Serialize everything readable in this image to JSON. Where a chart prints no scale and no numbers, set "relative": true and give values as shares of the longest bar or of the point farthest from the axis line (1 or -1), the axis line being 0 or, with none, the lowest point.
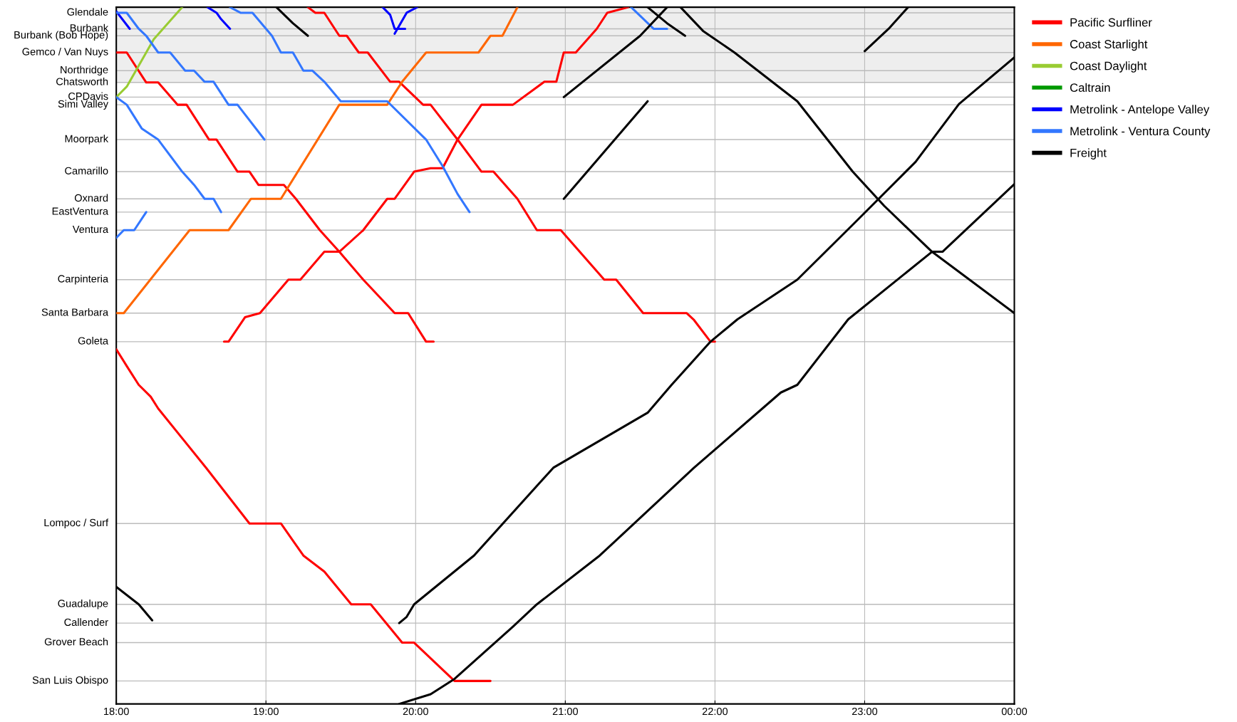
{
  "chart_data": {
    "type": "line",
    "relative": true,
    "xlim": [
      18,
      24
    ],
    "xticks": [
      {
        "value": 18,
        "label": "18:00"
      },
      {
        "value": 19,
        "label": "19:00"
      },
      {
        "value": 20,
        "label": "20:00"
      },
      {
        "value": 21,
        "label": "21:00"
      },
      {
        "value": 22,
        "label": "22:00"
      },
      {
        "value": 23,
        "label": "23:00"
      },
      {
        "value": 24,
        "label": "00:00"
      }
    ],
    "ref_lines": [
      {
        "axis": "y",
        "value": 0.992,
        "label": "Glendale"
      },
      {
        "axis": "y",
        "value": 0.969,
        "label": "Burbank"
      },
      {
        "axis": "y",
        "value": 0.959,
        "label": "Burbank (Bob Hope)"
      },
      {
        "axis": "y",
        "value": 0.935,
        "label": "Gemco / Van Nuys"
      },
      {
        "axis": "y",
        "value": 0.909,
        "label": "Northridge"
      },
      {
        "axis": "y",
        "value": 0.892,
        "label": "Chatsworth"
      },
      {
        "axis": "y",
        "value": 0.871,
        "label": "CPDavis"
      },
      {
        "axis": "y",
        "value": 0.86,
        "label": "Simi Valley"
      },
      {
        "axis": "y",
        "value": 0.81,
        "label": "Moorpark"
      },
      {
        "axis": "y",
        "value": 0.764,
        "label": "Camarillo"
      },
      {
        "axis": "y",
        "value": 0.725,
        "label": "Oxnard"
      },
      {
        "axis": "y",
        "value": 0.706,
        "label": "EastVentura"
      },
      {
        "axis": "y",
        "value": 0.68,
        "label": "Ventura"
      },
      {
        "axis": "y",
        "value": 0.609,
        "label": "Carpinteria"
      },
      {
        "axis": "y",
        "value": 0.561,
        "label": "Santa Barbara"
      },
      {
        "axis": "y",
        "value": 0.52,
        "label": "Goleta"
      },
      {
        "axis": "y",
        "value": 0.259,
        "label": "Lompoc / Surf"
      },
      {
        "axis": "y",
        "value": 0.143,
        "label": "Guadalupe"
      },
      {
        "axis": "y",
        "value": 0.116,
        "label": "Callender"
      },
      {
        "axis": "y",
        "value": 0.088,
        "label": "Grover Beach"
      },
      {
        "axis": "y",
        "value": 0.033,
        "label": "San Luis Obispo"
      }
    ],
    "grid": "x",
    "legend": "right",
    "line_style": "solid",
    "bands": [
      {
        "axis": "y",
        "from": 0.892,
        "to": 1.0,
        "color": "#eeeeee"
      }
    ],
    "series": [
      {
        "name": "Pacific Surfliner",
        "color": "#ff0000",
        "x": [
          18.0,
          18.07,
          18.2,
          18.28,
          18.41,
          18.47,
          18.62,
          18.67,
          18.81,
          18.89,
          18.95,
          19.12,
          19.2,
          19.36,
          19.49,
          19.65,
          19.86,
          19.95,
          20.07,
          20.12
        ],
        "values": [
          0.935,
          0.935,
          0.892,
          0.892,
          0.86,
          0.86,
          0.81,
          0.81,
          0.764,
          0.764,
          0.745,
          0.745,
          0.725,
          0.68,
          0.649,
          0.609,
          0.561,
          0.561,
          0.52,
          0.52
        ]
      },
      {
        "color": "#ff0000",
        "x": [
          18.72,
          18.75,
          18.86,
          18.96,
          19.15,
          19.23,
          19.39,
          19.49,
          19.65,
          19.81,
          19.86,
          19.99,
          20.1,
          20.18,
          20.28,
          20.44,
          20.65,
          20.86,
          20.94,
          20.99,
          21.07,
          21.21,
          21.28,
          21.42
        ],
        "values": [
          0.52,
          0.52,
          0.555,
          0.561,
          0.609,
          0.609,
          0.649,
          0.649,
          0.68,
          0.725,
          0.725,
          0.764,
          0.769,
          0.769,
          0.81,
          0.86,
          0.86,
          0.893,
          0.893,
          0.935,
          0.935,
          0.969,
          0.992,
          1.0
        ]
      },
      {
        "color": "#ff0000",
        "x": [
          19.28,
          19.33,
          19.39,
          19.49,
          19.54,
          19.62,
          19.68,
          19.83,
          19.89,
          20.05,
          20.1,
          20.28,
          20.44,
          20.52,
          20.68,
          20.81,
          20.97,
          21.26,
          21.34,
          21.52,
          21.81,
          21.86,
          21.97,
          22.0
        ],
        "values": [
          1.0,
          0.992,
          0.992,
          0.959,
          0.959,
          0.935,
          0.935,
          0.893,
          0.893,
          0.86,
          0.86,
          0.81,
          0.764,
          0.764,
          0.725,
          0.68,
          0.68,
          0.609,
          0.609,
          0.561,
          0.561,
          0.551,
          0.52,
          0.52
        ]
      },
      {
        "color": "#ff0000",
        "x": [
          18.0,
          18.07,
          18.15,
          18.23,
          18.28,
          18.6,
          18.89,
          19.1,
          19.25,
          19.39,
          19.57,
          19.7,
          19.91,
          19.99,
          20.26,
          20.5
        ],
        "values": [
          0.509,
          0.485,
          0.458,
          0.441,
          0.424,
          0.339,
          0.259,
          0.259,
          0.213,
          0.19,
          0.143,
          0.143,
          0.088,
          0.088,
          0.033,
          0.033
        ]
      },
      {
        "name": "Coast Starlight",
        "color": "#ff6600",
        "x": [
          18.0,
          18.05,
          18.49,
          18.75,
          18.9,
          19.1,
          19.49,
          19.81,
          19.91,
          20.07,
          20.42,
          20.5,
          20.58,
          20.68
        ],
        "values": [
          0.561,
          0.561,
          0.68,
          0.68,
          0.725,
          0.725,
          0.86,
          0.86,
          0.893,
          0.935,
          0.935,
          0.959,
          0.959,
          1.0
        ]
      },
      {
        "name": "Coast Daylight",
        "color": "#99cc33",
        "x": [
          18.0,
          18.07,
          18.25,
          18.44
        ],
        "values": [
          0.871,
          0.886,
          0.954,
          1.0
        ]
      },
      {
        "name": "Caltrain",
        "color": "#009900"
      },
      {
        "name": "Metrolink - Antelope Valley",
        "color": "#0000ff",
        "x": [
          18.0,
          18.09
        ],
        "values": [
          0.994,
          0.969
        ]
      },
      {
        "color": "#0000ff",
        "x": [
          18.61,
          18.67,
          18.7,
          18.76
        ],
        "values": [
          1.0,
          0.992,
          0.983,
          0.969
        ]
      },
      {
        "color": "#0000ff",
        "x": [
          19.78,
          19.83,
          19.86,
          19.93
        ],
        "values": [
          1.0,
          0.989,
          0.969,
          0.969
        ]
      },
      {
        "color": "#0000ff",
        "x": [
          19.86,
          19.94,
          20.01
        ],
        "values": [
          0.962,
          0.992,
          1.0
        ]
      },
      {
        "name": "Metrolink - Ventura County",
        "color": "#3377ff",
        "x": [
          18.0,
          18.07,
          18.15,
          18.2,
          18.28,
          18.36,
          18.46,
          18.52,
          18.59,
          18.65,
          18.75,
          18.81,
          18.99
        ],
        "values": [
          0.992,
          0.992,
          0.969,
          0.959,
          0.935,
          0.935,
          0.909,
          0.909,
          0.893,
          0.893,
          0.86,
          0.86,
          0.81
        ]
      },
      {
        "color": "#3377ff",
        "x": [
          18.0,
          18.07,
          18.17,
          18.28,
          18.44,
          18.52,
          18.59,
          18.65,
          18.7
        ],
        "values": [
          0.871,
          0.86,
          0.826,
          0.81,
          0.764,
          0.745,
          0.725,
          0.725,
          0.706
        ]
      },
      {
        "color": "#3377ff",
        "x": [
          18.0,
          18.05,
          18.12,
          18.2
        ],
        "values": [
          0.669,
          0.68,
          0.68,
          0.706
        ]
      },
      {
        "color": "#3377ff",
        "x": [
          18.76,
          18.83,
          18.91,
          19.04,
          19.1,
          19.18,
          19.25,
          19.31,
          19.39,
          19.5,
          19.81,
          20.07,
          20.18,
          20.28,
          20.36
        ],
        "values": [
          1.0,
          0.992,
          0.992,
          0.959,
          0.935,
          0.935,
          0.909,
          0.909,
          0.893,
          0.865,
          0.865,
          0.81,
          0.772,
          0.732,
          0.706
        ]
      },
      {
        "color": "#3377ff",
        "x": [
          21.44,
          21.59,
          21.68
        ],
        "values": [
          1.0,
          0.969,
          0.969
        ]
      },
      {
        "name": "Freight",
        "color": "#000000",
        "x": [
          19.07,
          19.18,
          19.28
        ],
        "values": [
          1.0,
          0.977,
          0.959
        ]
      },
      {
        "color": "#000000",
        "x": [
          20.99,
          21.5,
          21.68
        ],
        "values": [
          0.871,
          0.959,
          1.0
        ]
      },
      {
        "color": "#000000",
        "x": [
          21.55,
          21.68,
          21.8
        ],
        "values": [
          1.0,
          0.977,
          0.959
        ]
      },
      {
        "color": "#000000",
        "x": [
          20.99,
          21.55
        ],
        "values": [
          0.725,
          0.865
        ]
      },
      {
        "color": "#000000",
        "x": [
          21.77,
          21.92,
          22.13,
          22.55,
          22.92,
          23.13,
          23.45,
          24.0
        ],
        "values": [
          1.0,
          0.966,
          0.935,
          0.865,
          0.764,
          0.715,
          0.649,
          0.561
        ]
      },
      {
        "color": "#000000",
        "x": [
          23.0,
          23.16,
          23.29
        ],
        "values": [
          0.937,
          0.969,
          1.0
        ]
      },
      {
        "color": "#000000",
        "x": [
          18.0,
          18.15,
          18.24
        ],
        "values": [
          0.168,
          0.143,
          0.12
        ]
      },
      {
        "color": "#000000",
        "x": [
          19.89,
          19.94,
          19.99,
          20.39,
          20.92,
          21.55,
          21.71,
          21.97,
          22.15,
          22.55,
          22.94,
          23.34,
          23.63,
          24.0
        ],
        "values": [
          0.116,
          0.125,
          0.143,
          0.213,
          0.339,
          0.418,
          0.458,
          0.52,
          0.552,
          0.609,
          0.692,
          0.778,
          0.861,
          0.928
        ]
      },
      {
        "color": "#000000",
        "x": [
          19.89,
          20.1,
          20.26,
          20.65,
          20.81,
          21.23,
          21.86,
          22.44,
          22.55,
          22.89,
          23.45,
          23.52,
          24.0
        ],
        "values": [
          0.0,
          0.014,
          0.036,
          0.111,
          0.143,
          0.213,
          0.339,
          0.447,
          0.458,
          0.552,
          0.649,
          0.649,
          0.746
        ]
      }
    ]
  }
}
